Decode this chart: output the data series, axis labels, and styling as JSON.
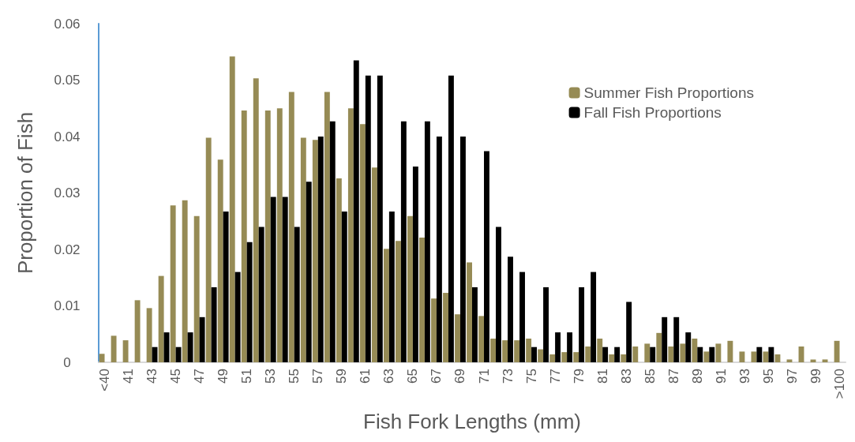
{
  "chart_data": {
    "type": "bar",
    "xlabel": "Fish Fork Lengths (mm)",
    "ylabel": "Proportion of Fish",
    "categories": [
      "<40",
      null,
      "41",
      null,
      "43",
      null,
      "45",
      null,
      "47",
      null,
      "49",
      null,
      "51",
      null,
      "53",
      null,
      "55",
      null,
      "57",
      null,
      "59",
      null,
      "61",
      null,
      "63",
      null,
      "65",
      null,
      "67",
      null,
      "69",
      null,
      "71",
      null,
      "73",
      null,
      "75",
      null,
      "77",
      null,
      "79",
      null,
      "81",
      null,
      "83",
      null,
      "85",
      null,
      "87",
      null,
      "89",
      null,
      "91",
      null,
      "93",
      null,
      "95",
      null,
      "97",
      null,
      "99",
      null,
      ">100"
    ],
    "series": [
      {
        "name": "Summer Fish Proportions",
        "color": "#968b55",
        "values": [
          0.0015,
          0.0047,
          0.0039,
          0.011,
          0.0096,
          0.0153,
          0.0278,
          0.0287,
          0.0259,
          0.0398,
          0.0359,
          0.0542,
          0.0446,
          0.0503,
          0.0446,
          0.045,
          0.0479,
          0.0398,
          0.0394,
          0.0479,
          0.0326,
          0.045,
          0.0422,
          0.0345,
          0.0201,
          0.0215,
          0.0259,
          0.0221,
          0.0113,
          0.0123,
          0.0085,
          0.0177,
          0.0082,
          0.0042,
          0.0039,
          0.0039,
          0.0042,
          0.0023,
          0.0014,
          0.0018,
          0.0018,
          0.0028,
          0.0042,
          0.0014,
          0.0014,
          0.0028,
          0.0033,
          0.0052,
          0.0028,
          0.0033,
          0.0042,
          0.0019,
          0.0033,
          0.0038,
          0.0019,
          0.0019,
          0.0019,
          0.0014,
          0.0005,
          0.0028,
          0.0005,
          0.0005,
          0.0038
        ]
      },
      {
        "name": "Fall Fish Proportions",
        "color": "#000000",
        "values": [
          0,
          0,
          0,
          0,
          0.0027,
          0.0053,
          0.0027,
          0.0053,
          0.008,
          0.0133,
          0.0267,
          0.016,
          0.0213,
          0.024,
          0.0293,
          0.0293,
          0.024,
          0.032,
          0.04,
          0.0427,
          0.0267,
          0.0535,
          0.0508,
          0.0508,
          0.0267,
          0.0427,
          0.0347,
          0.0427,
          0.04,
          0.0508,
          0.04,
          0.0133,
          0.0374,
          0.024,
          0.0187,
          0.016,
          0.0027,
          0.0133,
          0.0053,
          0.0053,
          0.0133,
          0.016,
          0.0027,
          0.0027,
          0.0107,
          0,
          0.0027,
          0.008,
          0.008,
          0.0053,
          0.0027,
          0.0027,
          0,
          0,
          0,
          0.0027,
          0.0027,
          0,
          0,
          0,
          0,
          0,
          0
        ]
      }
    ],
    "ylim": [
      0,
      0.06
    ],
    "yticks": [
      0,
      0.01,
      0.02,
      0.03,
      0.04,
      0.05,
      0.06
    ],
    "grid": false,
    "legend": "top right"
  }
}
